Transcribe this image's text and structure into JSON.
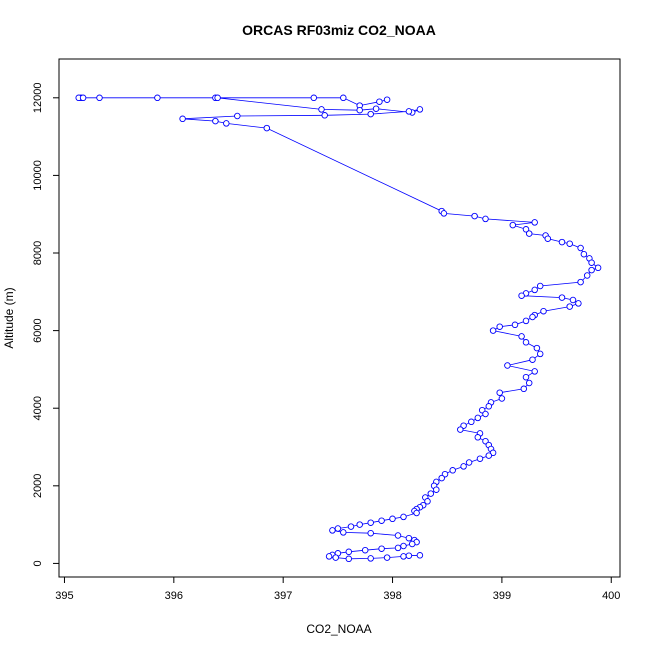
{
  "chart_data": {
    "type": "line",
    "title": "ORCAS RF03miz CO2_NOAA",
    "xlabel": "CO2_NOAA",
    "ylabel": "Altitude (m)",
    "xlim": [
      394.95,
      400.08
    ],
    "ylim": [
      -350,
      13000
    ],
    "xticks": [
      395,
      396,
      397,
      398,
      399,
      400
    ],
    "xtick_labels": [
      "395",
      "396",
      "397",
      "398",
      "399",
      "400"
    ],
    "yticks": [
      0,
      2000,
      4000,
      6000,
      8000,
      10000,
      12000
    ],
    "ytick_labels": [
      "0",
      "2000",
      "4000",
      "6000",
      "8000",
      "10000",
      "12000"
    ],
    "grid": false,
    "series_color": "#0000ff",
    "marker": "open-circle",
    "series": [
      {
        "x": [
          397.95,
          397.88,
          397.7,
          397.55,
          397.28,
          396.38,
          395.85,
          395.32,
          395.15,
          395.13,
          395.17,
          396.4,
          397.35,
          397.7,
          397.85,
          398.18,
          398.25,
          398.15,
          397.8,
          397.38,
          396.58,
          396.08,
          396.38,
          396.48,
          396.85,
          398.45,
          398.47,
          398.75,
          398.85,
          399.3,
          399.1,
          399.22,
          399.25,
          399.4,
          399.42,
          399.55,
          399.62,
          399.72,
          399.75,
          399.8,
          399.82,
          399.88,
          399.82,
          399.78,
          399.72,
          399.35,
          399.3,
          399.22,
          399.18,
          399.55,
          399.65,
          399.7,
          399.62,
          399.38,
          399.3,
          399.28,
          399.22,
          399.12,
          398.98,
          398.92,
          399.18,
          399.22,
          399.32,
          399.35,
          399.28,
          399.05,
          399.3,
          399.22,
          399.25,
          399.2,
          398.98,
          399.0,
          398.9,
          398.88,
          398.82,
          398.85,
          398.78,
          398.72,
          398.65,
          398.62,
          398.8,
          398.78,
          398.85,
          398.88,
          398.9,
          398.92,
          398.88,
          398.8,
          398.7,
          398.65,
          398.55,
          398.48,
          398.45,
          398.4,
          398.38,
          398.4,
          398.35,
          398.3,
          398.32,
          398.28,
          398.25,
          398.22,
          398.2,
          398.22,
          398.1,
          398.0,
          397.9,
          397.8,
          397.7,
          397.62,
          397.5,
          397.45,
          397.55,
          397.8,
          398.05,
          398.15,
          398.2,
          398.22,
          398.18,
          398.1,
          398.05,
          397.9,
          397.75,
          397.6,
          397.5,
          397.45,
          397.42,
          397.48,
          397.6,
          397.8,
          397.95,
          398.1,
          398.15,
          398.25
        ],
        "y": [
          11950,
          11900,
          11800,
          12000,
          12000,
          12000,
          12000,
          12000,
          12000,
          12000,
          12000,
          12000,
          11700,
          11680,
          11720,
          11620,
          11700,
          11650,
          11580,
          11550,
          11530,
          11460,
          11400,
          11340,
          11220,
          9080,
          9020,
          8950,
          8880,
          8790,
          8720,
          8610,
          8500,
          8450,
          8370,
          8280,
          8240,
          8130,
          7970,
          7860,
          7750,
          7620,
          7560,
          7420,
          7250,
          7150,
          7050,
          6960,
          6900,
          6850,
          6790,
          6700,
          6620,
          6500,
          6400,
          6350,
          6250,
          6150,
          6100,
          6000,
          5850,
          5700,
          5550,
          5400,
          5250,
          5100,
          4950,
          4800,
          4650,
          4500,
          4400,
          4250,
          4150,
          4050,
          3950,
          3850,
          3750,
          3650,
          3550,
          3450,
          3350,
          3250,
          3150,
          3050,
          2950,
          2850,
          2780,
          2700,
          2600,
          2500,
          2400,
          2300,
          2200,
          2100,
          2000,
          1900,
          1800,
          1700,
          1600,
          1500,
          1450,
          1400,
          1350,
          1300,
          1200,
          1150,
          1100,
          1050,
          1000,
          950,
          900,
          850,
          800,
          780,
          720,
          650,
          600,
          550,
          500,
          450,
          400,
          380,
          340,
          300,
          260,
          220,
          180,
          150,
          120,
          130,
          150,
          180,
          200,
          210
        ]
      }
    ]
  }
}
